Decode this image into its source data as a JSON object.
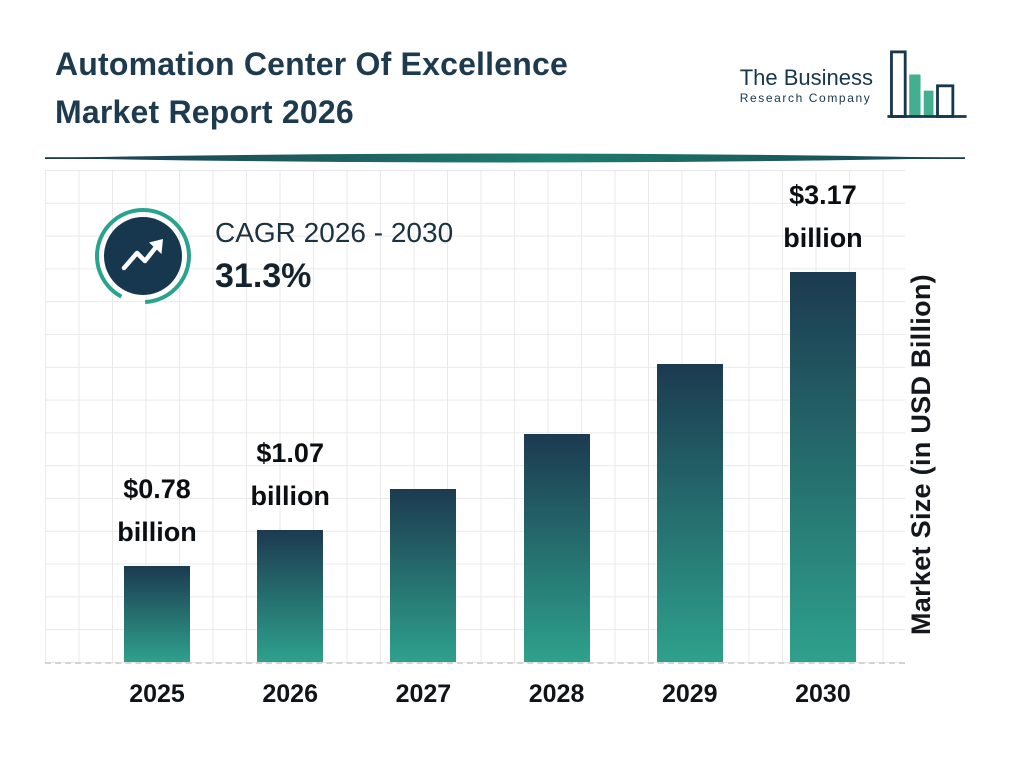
{
  "header": {
    "title_line1": "Automation Center Of Excellence",
    "title_line2": "Market Report 2026",
    "logo": {
      "line1": "The Business",
      "line2": "Research Company"
    }
  },
  "cagr": {
    "label": "CAGR 2026 - 2030",
    "value": "31.3%"
  },
  "chart_data": {
    "type": "bar",
    "title": "Automation Center Of Excellence Market Report 2026",
    "categories": [
      "2025",
      "2026",
      "2027",
      "2028",
      "2029",
      "2030"
    ],
    "values": [
      0.78,
      1.07,
      1.41,
      1.85,
      2.42,
      3.17
    ],
    "unit": "USD Billion",
    "ylabel": "Market Size (in USD Billion)",
    "xlabel": "",
    "ylim": [
      0,
      3.4
    ],
    "grid": true,
    "legend": false,
    "value_labels": [
      {
        "category": "2025",
        "line1": "$0.78",
        "line2": "billion"
      },
      {
        "category": "2026",
        "line1": "$1.07",
        "line2": "billion"
      },
      {
        "category": "2030",
        "line1": "$3.17",
        "line2": "billion"
      }
    ],
    "cagr_note": "CAGR 2026 - 2030: 31.3%",
    "bar_gradient_top": "#1c3a50",
    "bar_gradient_bottom": "#2ea18c"
  },
  "colors": {
    "title": "#1d3a4e",
    "dark_navy": "#17374e",
    "accent_teal": "#2aa38c",
    "logo_green": "#43af8e",
    "text": "#101418"
  }
}
